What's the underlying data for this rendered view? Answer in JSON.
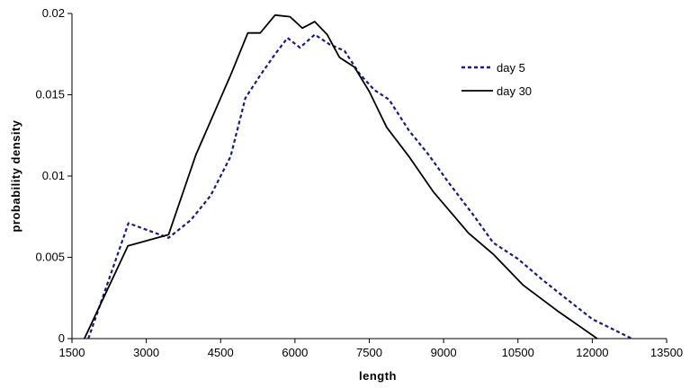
{
  "chart_data": {
    "type": "line",
    "title": "",
    "xlabel": "length",
    "ylabel": "probability density",
    "xlim": [
      1500,
      13500
    ],
    "ylim": [
      0,
      0.02
    ],
    "x_ticks": [
      1500,
      3000,
      4500,
      6000,
      7500,
      9000,
      10500,
      12000,
      13500
    ],
    "x_tick_labels": [
      "1500",
      "3000",
      "4500",
      "6000",
      "7500",
      "9000",
      "10500",
      "12000",
      "13500"
    ],
    "y_ticks": [
      0,
      0.005,
      0.01,
      0.015,
      0.02
    ],
    "y_tick_labels": [
      "0",
      "0.005",
      "0.01",
      "0.015",
      "0.02"
    ],
    "grid": false,
    "legend_position": "top-right",
    "series": [
      {
        "name": "day 5",
        "color": "#1a1a80",
        "style": "dashed",
        "x": [
          1830,
          2640,
          3450,
          3900,
          4300,
          4700,
          5000,
          5300,
          5600,
          5850,
          6100,
          6400,
          6700,
          7000,
          7300,
          7600,
          7900,
          8300,
          8700,
          9100,
          9600,
          10000,
          10500,
          11000,
          11500,
          12000,
          12800
        ],
        "y": [
          0,
          0.0071,
          0.0062,
          0.0073,
          0.0088,
          0.0112,
          0.0148,
          0.0162,
          0.0175,
          0.0185,
          0.0179,
          0.0187,
          0.0181,
          0.0177,
          0.0163,
          0.0153,
          0.0147,
          0.0128,
          0.0113,
          0.0096,
          0.0076,
          0.0059,
          0.0049,
          0.0036,
          0.0024,
          0.0012,
          0
        ]
      },
      {
        "name": "day 30",
        "color": "#000000",
        "style": "solid",
        "x": [
          1750,
          2630,
          3450,
          4000,
          4700,
          5050,
          5300,
          5600,
          5900,
          6150,
          6400,
          6650,
          6900,
          7200,
          7500,
          7850,
          8300,
          8800,
          9500,
          10000,
          10600,
          11300,
          12100
        ],
        "y": [
          0,
          0.0057,
          0.0064,
          0.0113,
          0.0162,
          0.0188,
          0.0188,
          0.0199,
          0.0198,
          0.0191,
          0.0195,
          0.0187,
          0.0173,
          0.0167,
          0.0152,
          0.013,
          0.0112,
          0.009,
          0.0065,
          0.0052,
          0.0033,
          0.0017,
          0
        ]
      }
    ]
  }
}
